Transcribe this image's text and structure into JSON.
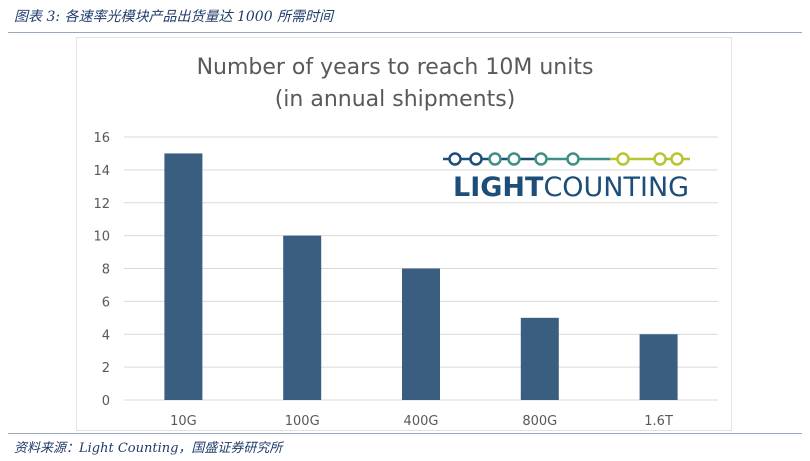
{
  "header": {
    "caption": "图表 3:  各速率光模块产品出货量达 1000 所需时间"
  },
  "footer": {
    "source": "资料来源：Light Counting，国盛证券研究所"
  },
  "logo": {
    "text_bold": "LIGHT",
    "text_regular": "COUNTING",
    "colors": {
      "dark": "#1d4e79",
      "teal": "#3f8f86",
      "lime": "#b7c532"
    }
  },
  "chart_data": {
    "type": "bar",
    "title_line1": "Number of years to reach 10M units",
    "title_line2": "(in annual shipments)",
    "categories": [
      "10G",
      "100G",
      "400G",
      "800G",
      "1.6T"
    ],
    "values": [
      15,
      10,
      8,
      5,
      4
    ],
    "ylim": [
      0,
      16
    ],
    "yticks": [
      0,
      2,
      4,
      6,
      8,
      10,
      12,
      14,
      16
    ],
    "grid": true,
    "legend": "none",
    "bar_color": "#3a5e80",
    "grid_color": "#d9d9d9"
  }
}
